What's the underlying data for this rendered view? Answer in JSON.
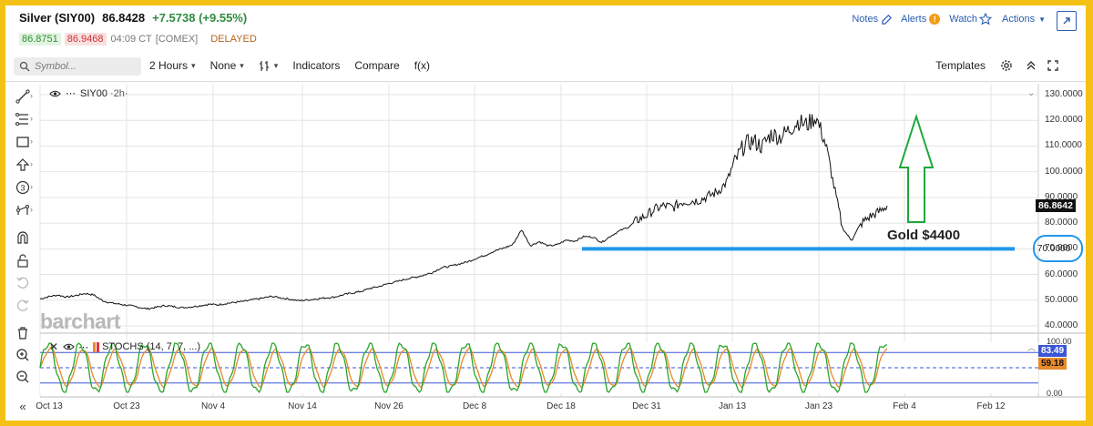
{
  "header": {
    "title": "Silver (SIY00)",
    "price": "86.8428",
    "change": "+7.5738 (+9.55%)",
    "bid": "86.8751",
    "ask": "86.9468",
    "time": "04:09 CT",
    "exchange": "[COMEX]",
    "status": "DELAYED",
    "notes_label": "Notes",
    "alerts_label": "Alerts",
    "watch_label": "Watch",
    "actions_label": "Actions"
  },
  "toolbar": {
    "symbol_placeholder": "Symbol...",
    "interval": "2 Hours",
    "overlay": "None",
    "indicators_label": "Indicators",
    "compare_label": "Compare",
    "fx_label": "f(x)",
    "templates_label": "Templates"
  },
  "chart_data": {
    "type": "line",
    "title": "SIY00",
    "interval_label": "2h",
    "watermark": "barchart",
    "x_tick_labels": [
      "Oct 13",
      "Oct 23",
      "Nov 4",
      "Nov 14",
      "Nov 26",
      "Dec 8",
      "Dec 18",
      "Dec 31",
      "Jan 13",
      "Jan 23",
      "Feb 4",
      "Feb 12"
    ],
    "y_tick_labels": [
      "130.0000",
      "120.0000",
      "110.0000",
      "100.0000",
      "90.0000",
      "80.0000",
      "70.0000",
      "60.0000",
      "50.0000",
      "40.0000"
    ],
    "ylim": [
      40,
      130
    ],
    "last_price_label": "86.8642",
    "highlighted_level_label": "70.0000",
    "series": [
      {
        "values": [
          50.5,
          51.4,
          52.0,
          51.2,
          51.8,
          52.6,
          52.1,
          49.8,
          48.9,
          48.4,
          47.9,
          47.3,
          46.6,
          47.2,
          47.9,
          47.5,
          47.1,
          47.4,
          47.9,
          48.4,
          48.2,
          48.8,
          49.2,
          49.6,
          50.3,
          50.8,
          51.5,
          50.9,
          50.4,
          49.8,
          50.1,
          50.5,
          50.9,
          51.2,
          52.1,
          52.8,
          53.4,
          54.6,
          55.3,
          56.4,
          57.2,
          58.2,
          58.9,
          59.7,
          60.8,
          62.6,
          63.2,
          64.1,
          65.0,
          66.4,
          67.6,
          69.2,
          70.3,
          71.6,
          77.4,
          71.2,
          72.8,
          71.1,
          71.6,
          73.4,
          73.0,
          74.8,
          74.6,
          72.5,
          75.0,
          77.0,
          78.5,
          81.2,
          83.0,
          85.5,
          86.8,
          86.1,
          88.2,
          88.6,
          89.0,
          90.6,
          92.2,
          96.0,
          104.3,
          110.5,
          112.0,
          109.8,
          114.8,
          113.5,
          116.3,
          119.6,
          118.2,
          121.3,
          112.0,
          95.0,
          78.0,
          73.2,
          79.6,
          82.4,
          84.2,
          86.8
        ]
      }
    ],
    "annotations": {
      "support_level": 70.0,
      "support_label": "Gold $4400",
      "up_arrow": "green outlined arrow pointing up"
    },
    "indicator": {
      "name": "STOCHS (14, 7, 7, ...)",
      "value_k": "83.49",
      "value_d": "59.18",
      "levels": [
        80,
        50,
        20
      ],
      "y_tick_labels": [
        "100.00",
        "0.00"
      ]
    }
  },
  "colors": {
    "frame": "#f5c116",
    "up": "#2e8b3e",
    "support_line": "#2196e8",
    "arrow": "#1ea83a",
    "stoch_k": "#2aa52a",
    "stoch_d": "#e8892b",
    "stoch_level": "#3a56d6"
  }
}
